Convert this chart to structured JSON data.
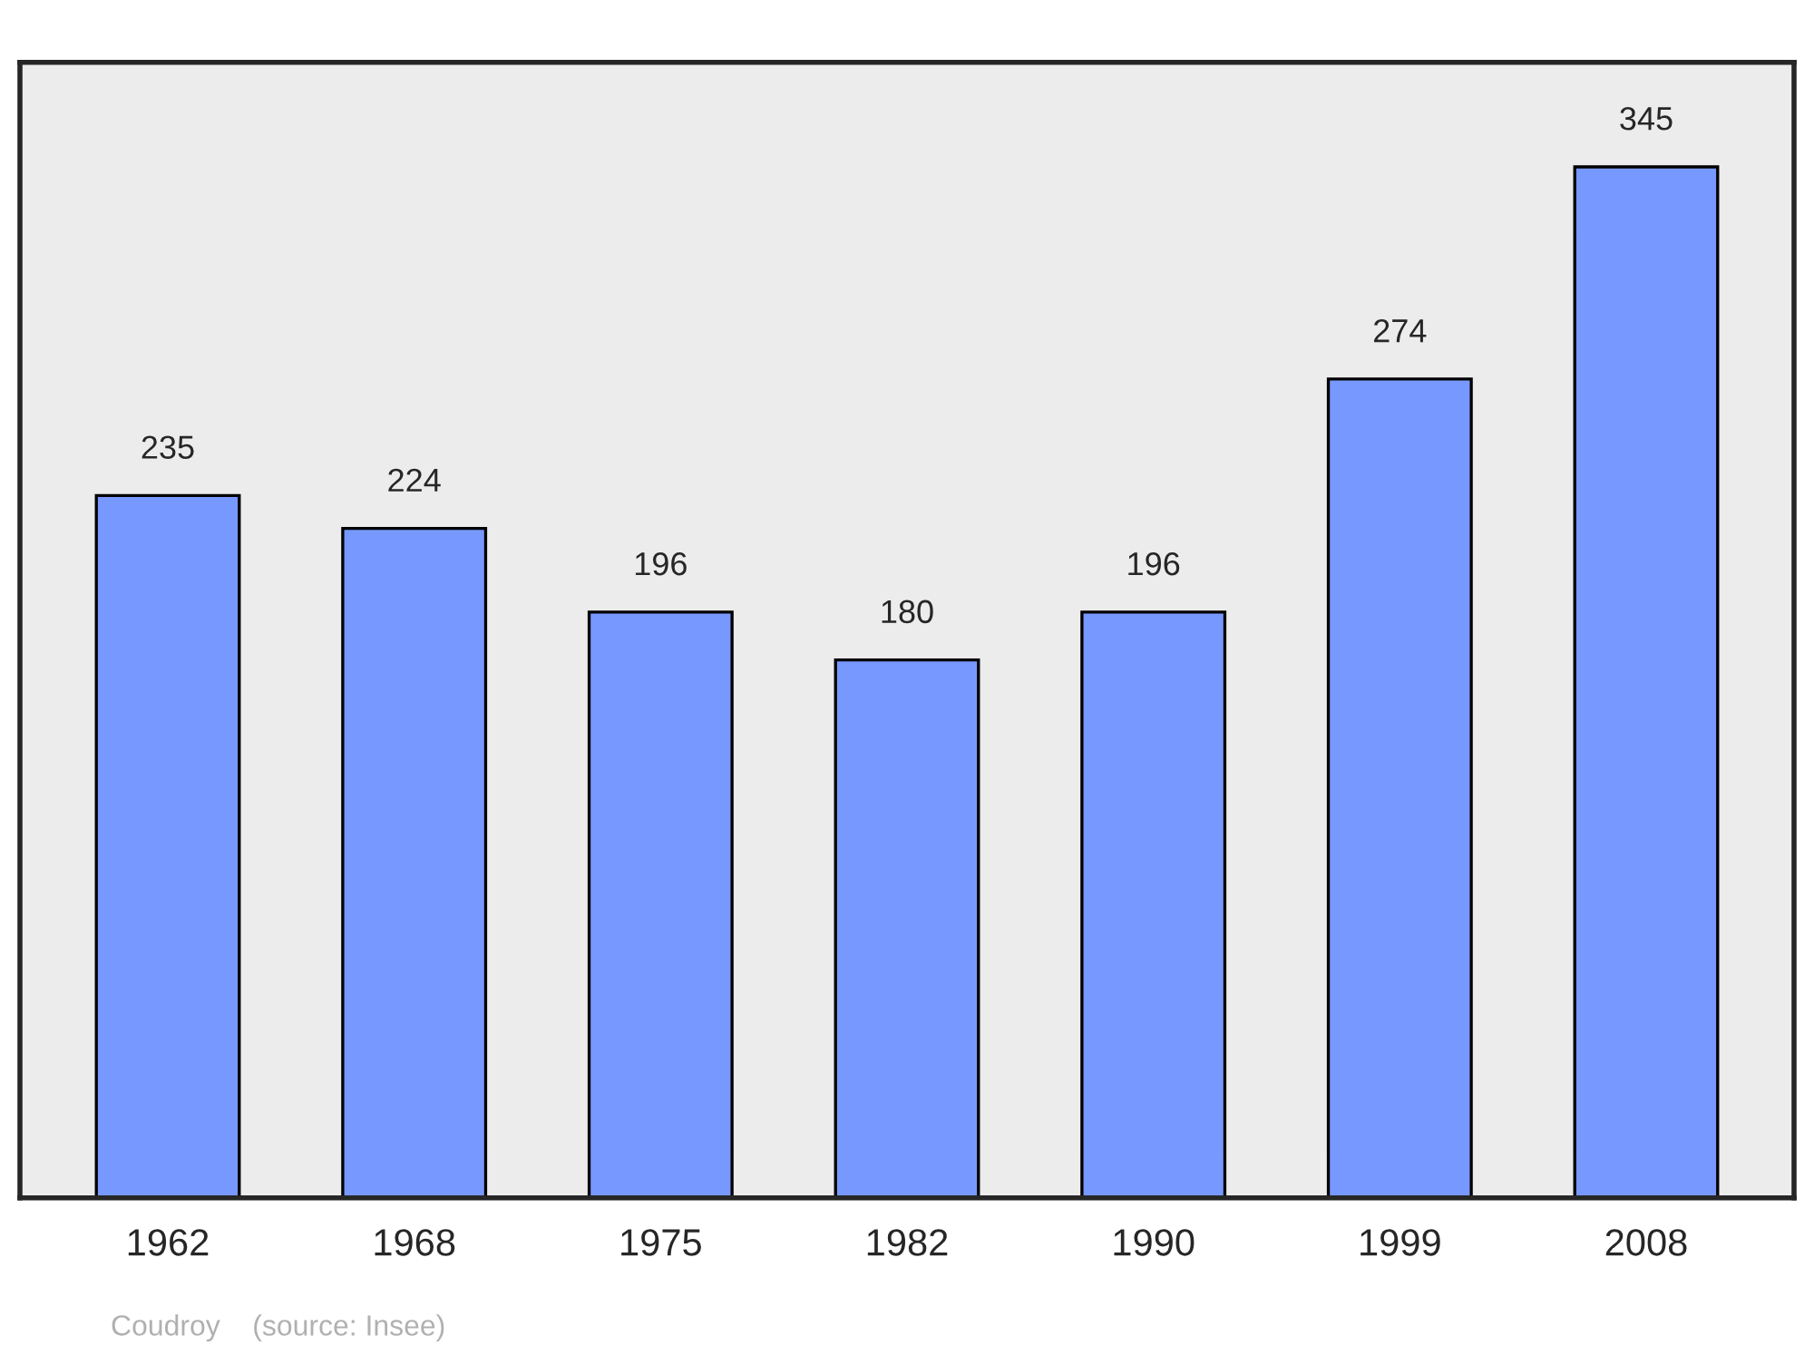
{
  "chart_data": {
    "type": "bar",
    "categories": [
      "1962",
      "1968",
      "1975",
      "1982",
      "1990",
      "1999",
      "2008"
    ],
    "values": [
      235,
      224,
      196,
      180,
      196,
      274,
      345
    ],
    "color": "#7799ff",
    "ylim": [
      0,
      380
    ],
    "data_labels": true,
    "grid": false,
    "legend": false,
    "tick_labels": "x",
    "annotations": [
      "Coudroy    (source: Insee)"
    ]
  }
}
